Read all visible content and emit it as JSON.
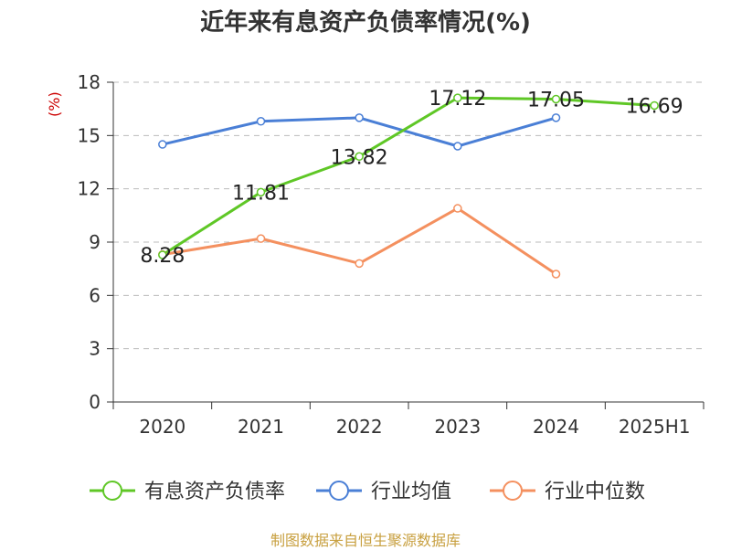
{
  "title": "近年来有息资产负债率情况(%)",
  "unit": "(%)",
  "source": "制图数据来自恒生聚源数据库",
  "chart_data": {
    "type": "line",
    "categories": [
      "2020",
      "2021",
      "2022",
      "2023",
      "2024",
      "2025H1"
    ],
    "yticks": [
      "0",
      "3",
      "6",
      "9",
      "12",
      "15",
      "18"
    ],
    "ylim": [
      0,
      18
    ],
    "grid": true,
    "legend_position": "bottom",
    "series": [
      {
        "name": "有息资产负债率",
        "color": "#5fc726",
        "values": [
          8.28,
          11.81,
          13.82,
          17.12,
          17.05,
          16.69
        ],
        "labels": [
          "8.28",
          "11.81",
          "13.82",
          "17.12",
          "17.05",
          "16.69"
        ]
      },
      {
        "name": "行业均值",
        "color": "#4a7fd6",
        "values": [
          14.5,
          15.8,
          16.0,
          14.4,
          16.0,
          null
        ]
      },
      {
        "name": "行业中位数",
        "color": "#f4905f",
        "values": [
          8.3,
          9.2,
          7.8,
          10.9,
          7.2,
          null
        ]
      }
    ]
  }
}
